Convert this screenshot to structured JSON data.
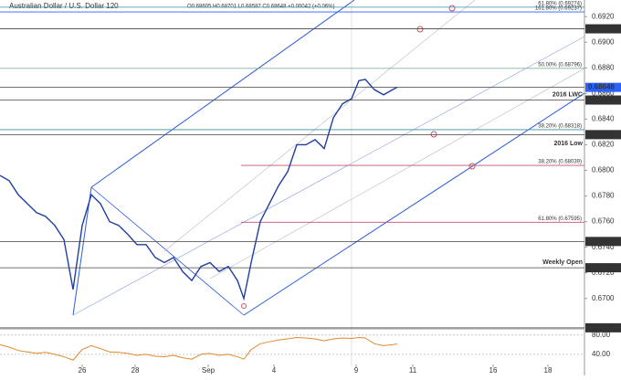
{
  "chart_data": {
    "type": "line",
    "title": "Australian Dollar / U.S. Dollar  120",
    "ohlc_label": "O0.68605 H0.68701 L0.68587 C0.68648 +0.00042 (+0.06%)",
    "color": "#1f3f9e",
    "x": [
      0,
      2.5,
      5,
      7.5,
      10,
      12.5,
      15,
      17.5,
      20,
      22.5,
      25,
      27.5,
      30,
      32.5,
      35,
      37.5,
      40,
      42.5,
      45,
      47.5,
      50,
      52.5,
      55,
      57.5,
      60,
      62.5,
      65,
      66.75,
      68.75,
      71.25,
      73.75,
      76.25,
      78.75,
      81.25,
      83.75,
      86.25,
      88.75,
      91.25,
      93.75,
      96.25,
      98.25,
      100,
      102.5,
      105,
      107.5,
      108.75
    ],
    "values": [
      0.6796,
      0.6792,
      0.6781,
      0.6774,
      0.6767,
      0.6764,
      0.6757,
      0.6746,
      0.6707,
      0.6757,
      0.6781,
      0.6774,
      0.676,
      0.6757,
      0.675,
      0.6742,
      0.6742,
      0.6732,
      0.6728,
      0.6732,
      0.6721,
      0.6714,
      0.6725,
      0.6728,
      0.6721,
      0.6725,
      0.6714,
      0.67,
      0.6728,
      0.676,
      0.6774,
      0.6788,
      0.6799,
      0.682,
      0.682,
      0.6824,
      0.6817,
      0.6841,
      0.6852,
      0.6856,
      0.687,
      0.6871,
      0.6863,
      0.6859,
      0.6863,
      0.6865
    ],
    "xlim": [
      0,
      160
    ],
    "ylim": [
      0.6677,
      0.6933
    ],
    "xticks": [
      {
        "value": 22.5,
        "label": "26"
      },
      {
        "value": 37,
        "label": "28"
      },
      {
        "value": 57,
        "label": "Sep"
      },
      {
        "value": 75,
        "label": "4"
      },
      {
        "value": 97.5,
        "label": "9"
      },
      {
        "value": 113,
        "label": "11"
      },
      {
        "value": 135,
        "label": "16"
      },
      {
        "value": 150,
        "label": "18"
      }
    ],
    "yticks": [
      {
        "value": 0.67,
        "label": "0.6700"
      },
      {
        "value": 0.672,
        "label": "0.6720"
      },
      {
        "value": 0.674,
        "label": "0.6740"
      },
      {
        "value": 0.676,
        "label": "0.6760"
      },
      {
        "value": 0.678,
        "label": "0.6780"
      },
      {
        "value": 0.68,
        "label": "0.6800"
      },
      {
        "value": 0.682,
        "label": "0.6820"
      },
      {
        "value": 0.684,
        "label": "0.6840"
      },
      {
        "value": 0.686,
        "label": "0.6860"
      },
      {
        "value": 0.688,
        "label": "0.6880"
      },
      {
        "value": 0.69,
        "label": "0.6900"
      },
      {
        "value": 0.692,
        "label": "0.6920"
      }
    ],
    "levels": [
      {
        "value": 0.69105,
        "label": "0.69105",
        "color": "#333333"
      },
      {
        "value": 0.68648,
        "label": "0.68648",
        "color": "#2962ff"
      },
      {
        "value": 0.68549,
        "label": "0.68549",
        "color": "#333333",
        "note": "2016 LWC"
      },
      {
        "value": 0.68279,
        "label": "0.68279",
        "color": "#333333",
        "note": "2016 Low"
      },
      {
        "value": 0.67445,
        "label": "0.67445",
        "color": "#333333"
      },
      {
        "value": 0.6724,
        "label": "0.67240",
        "color": "#333333",
        "note": "Weekly Open"
      },
      {
        "value": 0.66771,
        "label": "0.66771",
        "color": "#333333"
      }
    ],
    "fibs": [
      {
        "value": 0.69274,
        "text": "61.80% (0.69274)",
        "color": "#3a8fa0",
        "start": 0
      },
      {
        "value": 0.69237,
        "text": "161.80% (0.69237)",
        "color": "#2962ff",
        "start": 0
      },
      {
        "value": 0.68796,
        "text": "50.00% (0.68796)",
        "color": "#6aa88a",
        "start": 0
      },
      {
        "value": 0.68318,
        "text": "38.20% (0.68318)",
        "color": "#3a8fa0",
        "start": 0
      },
      {
        "value": 0.68039,
        "text": "38.20% (0.68039)",
        "color": "#c0506e",
        "start": 66
      },
      {
        "value": 0.67595,
        "text": "61.80% (0.67595)",
        "color": "#c0506e",
        "start": 66
      }
    ],
    "rsi": {
      "color": "#e08a2e",
      "ylim": [
        19,
        91
      ],
      "yticks": [
        {
          "value": 40,
          "label": "40.00"
        },
        {
          "value": 80,
          "label": "80.00"
        }
      ],
      "values": [
        60,
        55,
        48,
        45,
        42,
        44,
        40,
        35,
        28,
        50,
        58,
        52,
        45,
        44,
        42,
        38,
        40,
        36,
        35,
        38,
        33,
        30,
        40,
        42,
        38,
        40,
        35,
        30,
        50,
        62,
        66,
        70,
        72,
        75,
        74,
        72,
        68,
        72,
        74,
        73,
        75,
        74,
        62,
        58,
        60,
        62
      ]
    }
  }
}
